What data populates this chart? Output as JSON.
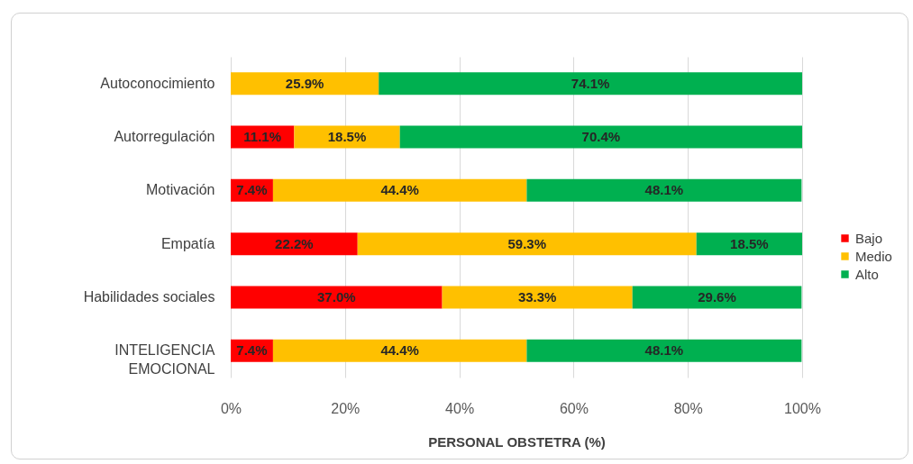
{
  "chart_data": {
    "type": "bar",
    "orientation": "horizontal",
    "stacked": true,
    "categories": [
      "Autoconocimiento",
      "Autorregulación",
      "Motivación",
      "Empatía",
      "Habilidades sociales",
      "INTELIGENCIA EMOCIONAL"
    ],
    "series": [
      {
        "name": "Bajo",
        "color": "#ff0000",
        "values": [
          null,
          11.1,
          7.4,
          22.2,
          37.0,
          7.4
        ],
        "value_labels": [
          null,
          "11.1%",
          "7.4%",
          "22.2%",
          "37.0%",
          "7.4%"
        ]
      },
      {
        "name": "Medio",
        "color": "#ffc000",
        "values": [
          25.9,
          18.5,
          44.4,
          59.3,
          33.3,
          44.4
        ],
        "value_labels": [
          "25.9%",
          "18.5%",
          "44.4%",
          "59.3%",
          "33.3%",
          "44.4%"
        ]
      },
      {
        "name": "Alto",
        "color": "#00b050",
        "values": [
          74.1,
          70.4,
          48.1,
          18.5,
          29.6,
          48.1
        ],
        "value_labels": [
          "74.1%",
          "70.4%",
          "48.1%",
          "18.5%",
          "29.6%",
          "48.1%"
        ]
      }
    ],
    "xlabel": "PERSONAL OBSTETRA (%)",
    "xlim": [
      0,
      100
    ],
    "xticks": [
      {
        "value": 0,
        "label": "0%"
      },
      {
        "value": 20,
        "label": "20%"
      },
      {
        "value": 40,
        "label": "40%"
      },
      {
        "value": 60,
        "label": "60%"
      },
      {
        "value": 80,
        "label": "80%"
      },
      {
        "value": 100,
        "label": "100%"
      }
    ],
    "grid": "x",
    "legend": "right"
  }
}
